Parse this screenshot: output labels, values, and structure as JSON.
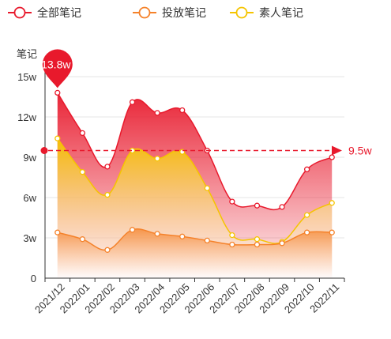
{
  "chart_data": {
    "type": "area",
    "ylabel": "笔记",
    "y_ticks": [
      "0",
      "3w",
      "6w",
      "9w",
      "12w",
      "15w"
    ],
    "ylim": [
      0,
      15
    ],
    "categories": [
      "2021/12",
      "2022/01",
      "2022/02",
      "2022/03",
      "2022/04",
      "2022/05",
      "2022/06",
      "2022/07",
      "2022/08",
      "2022/09",
      "2022/10",
      "2022/11"
    ],
    "legend_position": "top",
    "grid": true,
    "series": [
      {
        "name": "全部笔记",
        "color": "#e8192c",
        "values": [
          13.8,
          10.8,
          8.3,
          13.1,
          12.3,
          12.5,
          9.5,
          5.7,
          5.4,
          5.3,
          8.1,
          9.0
        ]
      },
      {
        "name": "投放笔记",
        "color": "#f5822a",
        "values": [
          3.4,
          2.9,
          2.1,
          3.6,
          3.3,
          3.1,
          2.8,
          2.5,
          2.5,
          2.6,
          3.4,
          3.4
        ]
      },
      {
        "name": "素人笔记",
        "color": "#f5c400",
        "values": [
          10.4,
          7.9,
          6.2,
          9.5,
          8.9,
          9.4,
          6.7,
          3.2,
          2.9,
          2.7,
          4.7,
          5.6
        ]
      }
    ],
    "annotations": {
      "max_label": "13.8w",
      "average_label": "9.5w",
      "average_value": 9.5
    }
  }
}
